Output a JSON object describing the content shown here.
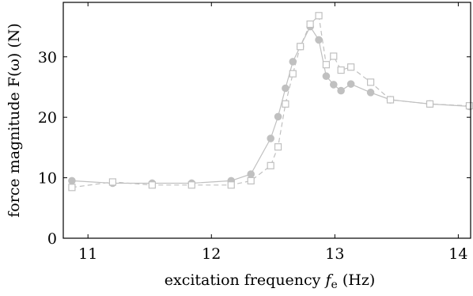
{
  "chart_data": {
    "type": "line",
    "xlabel": {
      "prefix": "excitation frequency ",
      "symbol": "f",
      "subscript": "e",
      "suffix": " (Hz)"
    },
    "ylabel": "force magnitude F(ω) (N)",
    "xlim": [
      10.8,
      14.1
    ],
    "ylim": [
      0,
      39
    ],
    "x_ticks": [
      11,
      12,
      13,
      14
    ],
    "y_ticks": [
      0,
      10,
      20,
      30
    ],
    "grid": false,
    "legend": "none",
    "colors": {
      "series": "#c0c0c0",
      "axis": "#000000"
    },
    "series": [
      {
        "line_style": "solid",
        "marker": "filled-circle",
        "x": [
          10.87,
          11.2,
          11.52,
          11.84,
          12.16,
          12.32,
          12.48,
          12.54,
          12.6,
          12.66,
          12.72,
          12.8,
          12.87,
          12.93,
          12.99,
          13.05,
          13.13,
          13.29,
          13.45,
          13.77,
          14.09
        ],
        "y": [
          9.5,
          9.1,
          9.1,
          9.1,
          9.5,
          10.6,
          16.5,
          20.1,
          24.8,
          29.2,
          31.7,
          35.0,
          32.8,
          26.8,
          25.4,
          24.4,
          25.5,
          24.1,
          22.9,
          22.2,
          21.8
        ]
      },
      {
        "line_style": "dashed",
        "marker": "open-square",
        "x": [
          10.87,
          11.2,
          11.52,
          11.84,
          12.16,
          12.32,
          12.48,
          12.54,
          12.6,
          12.66,
          12.72,
          12.8,
          12.87,
          12.93,
          12.99,
          13.05,
          13.13,
          13.29,
          13.45,
          13.77,
          14.09
        ],
        "y": [
          8.4,
          9.3,
          8.8,
          8.8,
          8.8,
          9.5,
          12.0,
          15.1,
          22.2,
          27.2,
          31.7,
          35.4,
          36.8,
          28.7,
          30.1,
          27.8,
          28.3,
          25.8,
          22.9,
          22.2,
          21.9
        ]
      }
    ]
  }
}
